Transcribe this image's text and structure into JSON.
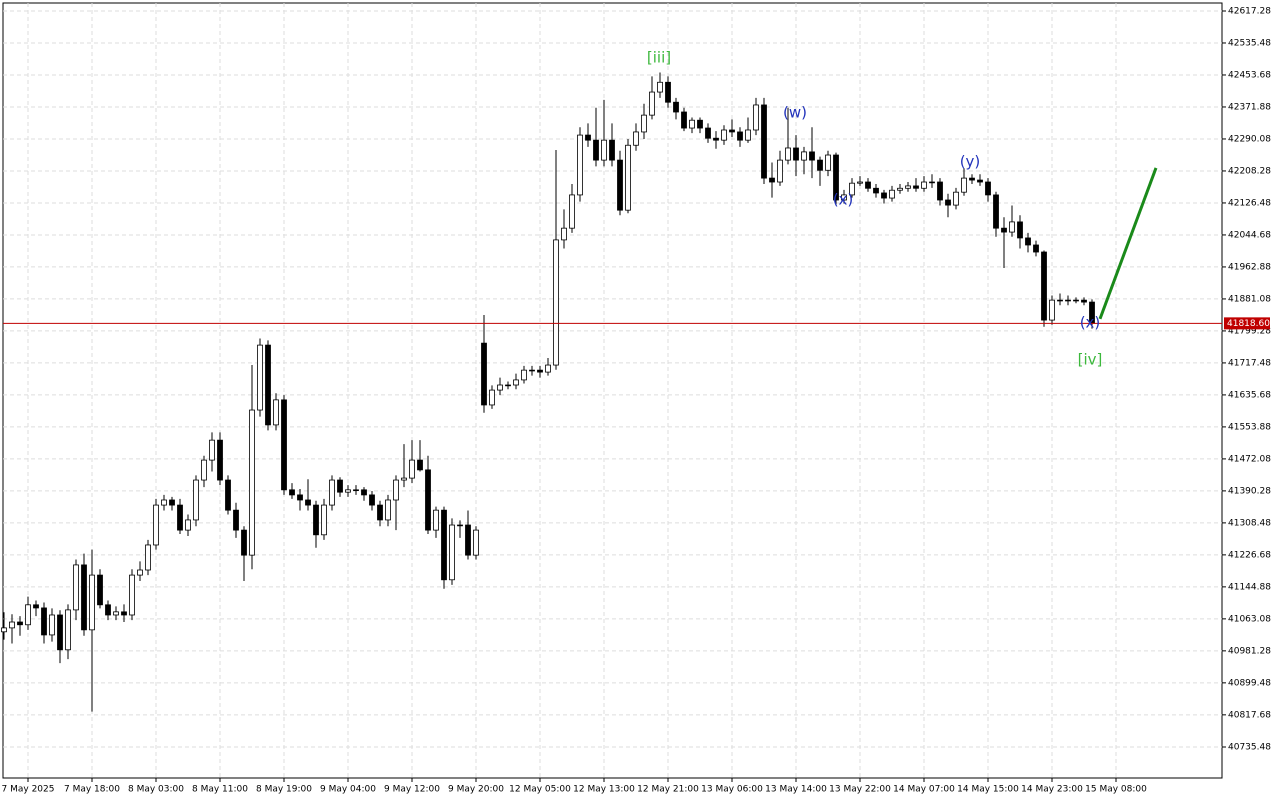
{
  "chart_data": {
    "type": "candlestick",
    "ohlc": [
      [
        41030,
        41080,
        41010,
        41040
      ],
      [
        41040,
        41075,
        41000,
        41055
      ],
      [
        41055,
        41070,
        41020,
        41048
      ],
      [
        41048,
        41120,
        41035,
        41099
      ],
      [
        41099,
        41110,
        41070,
        41091
      ],
      [
        41091,
        41105,
        41000,
        41022
      ],
      [
        41022,
        41090,
        41005,
        41073
      ],
      [
        41073,
        41085,
        40950,
        40984
      ],
      [
        40984,
        41100,
        40960,
        41086
      ],
      [
        41086,
        41215,
        41060,
        41201
      ],
      [
        41201,
        41230,
        41020,
        41035
      ],
      [
        41035,
        41240,
        40826,
        41175
      ],
      [
        41175,
        41190,
        41090,
        41099
      ],
      [
        41099,
        41110,
        41060,
        41073
      ],
      [
        41073,
        41095,
        41060,
        41081
      ],
      [
        41081,
        41100,
        41055,
        41073
      ],
      [
        41073,
        41190,
        41060,
        41175
      ],
      [
        41175,
        41210,
        41160,
        41188
      ],
      [
        41188,
        41265,
        41175,
        41252
      ],
      [
        41252,
        41370,
        41240,
        41354
      ],
      [
        41354,
        41380,
        41340,
        41367
      ],
      [
        41367,
        41375,
        41340,
        41354
      ],
      [
        41354,
        41370,
        41280,
        41290
      ],
      [
        41290,
        41330,
        41275,
        41316
      ],
      [
        41316,
        41430,
        41300,
        41418
      ],
      [
        41418,
        41480,
        41400,
        41469
      ],
      [
        41469,
        41540,
        41440,
        41520
      ],
      [
        41520,
        41540,
        41405,
        41418
      ],
      [
        41418,
        41430,
        41330,
        41341
      ],
      [
        41341,
        41360,
        41270,
        41290
      ],
      [
        41290,
        41300,
        41160,
        41226
      ],
      [
        41226,
        41712,
        41190,
        41597
      ],
      [
        41597,
        41780,
        41580,
        41763
      ],
      [
        41763,
        41775,
        41545,
        41559
      ],
      [
        41559,
        41640,
        41545,
        41623
      ],
      [
        41623,
        41635,
        41380,
        41393
      ],
      [
        41393,
        41410,
        41370,
        41380
      ],
      [
        41380,
        41395,
        41340,
        41367
      ],
      [
        41367,
        41420,
        41340,
        41354
      ],
      [
        41354,
        41365,
        41245,
        41278
      ],
      [
        41278,
        41370,
        41265,
        41354
      ],
      [
        41354,
        41430,
        41340,
        41418
      ],
      [
        41418,
        41425,
        41375,
        41387
      ],
      [
        41387,
        41405,
        41375,
        41393
      ],
      [
        41393,
        41405,
        41380,
        41393
      ],
      [
        41393,
        41400,
        41365,
        41380
      ],
      [
        41380,
        41390,
        41340,
        41354
      ],
      [
        41354,
        41365,
        41300,
        41316
      ],
      [
        41316,
        41380,
        41300,
        41367
      ],
      [
        41367,
        41430,
        41290,
        41418
      ],
      [
        41418,
        41510,
        41400,
        41423
      ],
      [
        41423,
        41520,
        41410,
        41469
      ],
      [
        41469,
        41520,
        41440,
        41444
      ],
      [
        41444,
        41480,
        41280,
        41290
      ],
      [
        41290,
        41350,
        41270,
        41341
      ],
      [
        41341,
        41350,
        41140,
        41163
      ],
      [
        41163,
        41320,
        41150,
        41303
      ],
      [
        41303,
        41315,
        41270,
        41303
      ],
      [
        41303,
        41340,
        41215,
        41226
      ],
      [
        41226,
        41300,
        41215,
        41290
      ],
      [
        41768,
        41840,
        41590,
        41610
      ],
      [
        41610,
        41660,
        41600,
        41648
      ],
      [
        41648,
        41680,
        41635,
        41661
      ],
      [
        41661,
        41670,
        41650,
        41661
      ],
      [
        41661,
        41690,
        41650,
        41674
      ],
      [
        41674,
        41710,
        41665,
        41699
      ],
      [
        41699,
        41710,
        41685,
        41699
      ],
      [
        41699,
        41710,
        41680,
        41694
      ],
      [
        41694,
        41730,
        41685,
        41712
      ],
      [
        41712,
        42262,
        41700,
        42032
      ],
      [
        42032,
        42110,
        42010,
        42062
      ],
      [
        42062,
        42175,
        42050,
        42147
      ],
      [
        42147,
        42320,
        42130,
        42300
      ],
      [
        42300,
        42330,
        42270,
        42287
      ],
      [
        42287,
        42370,
        42220,
        42236
      ],
      [
        42236,
        42390,
        42220,
        42287
      ],
      [
        42287,
        42330,
        42220,
        42236
      ],
      [
        42236,
        42260,
        42095,
        42108
      ],
      [
        42108,
        42290,
        42100,
        42274
      ],
      [
        42274,
        42330,
        42260,
        42308
      ],
      [
        42308,
        42380,
        42290,
        42351
      ],
      [
        42351,
        42450,
        42340,
        42410
      ],
      [
        42410,
        42460,
        42395,
        42435
      ],
      [
        42435,
        42450,
        42370,
        42384
      ],
      [
        42384,
        42395,
        42340,
        42359
      ],
      [
        42359,
        42370,
        42310,
        42318
      ],
      [
        42318,
        42345,
        42305,
        42338
      ],
      [
        42338,
        42345,
        42305,
        42318
      ],
      [
        42318,
        42330,
        42280,
        42292
      ],
      [
        42292,
        42310,
        42265,
        42287
      ],
      [
        42287,
        42325,
        42275,
        42313
      ],
      [
        42313,
        42340,
        42295,
        42308
      ],
      [
        42308,
        42320,
        42270,
        42287
      ],
      [
        42287,
        42345,
        42280,
        42313
      ],
      [
        42313,
        42395,
        42300,
        42377
      ],
      [
        42377,
        42395,
        42175,
        42190
      ],
      [
        42190,
        42230,
        42140,
        42180
      ],
      [
        42180,
        42260,
        42170,
        42236
      ],
      [
        42236,
        42370,
        42225,
        42267
      ],
      [
        42267,
        42300,
        42195,
        42236
      ],
      [
        42236,
        42270,
        42200,
        42257
      ],
      [
        42257,
        42320,
        42190,
        42236
      ],
      [
        42236,
        42245,
        42170,
        42210
      ],
      [
        42210,
        42260,
        42195,
        42249
      ],
      [
        42249,
        42255,
        42120,
        42134
      ],
      [
        42134,
        42160,
        42125,
        42147
      ],
      [
        42147,
        42190,
        42140,
        42177
      ],
      [
        42177,
        42195,
        42170,
        42180
      ],
      [
        42180,
        42190,
        42155,
        42164
      ],
      [
        42164,
        42175,
        42140,
        42152
      ],
      [
        42152,
        42160,
        42125,
        42139
      ],
      [
        42139,
        42170,
        42130,
        42159
      ],
      [
        42159,
        42175,
        42150,
        42164
      ],
      [
        42164,
        42180,
        42155,
        42170
      ],
      [
        42170,
        42190,
        42155,
        42164
      ],
      [
        42164,
        42195,
        42155,
        42180
      ],
      [
        42180,
        42200,
        42165,
        42180
      ],
      [
        42180,
        42190,
        42120,
        42134
      ],
      [
        42134,
        42150,
        42090,
        42121
      ],
      [
        42121,
        42165,
        42110,
        42154
      ],
      [
        42154,
        42215,
        42145,
        42190
      ],
      [
        42190,
        42200,
        42175,
        42185
      ],
      [
        42185,
        42200,
        42170,
        42180
      ],
      [
        42180,
        42190,
        42130,
        42147
      ],
      [
        42147,
        42155,
        42040,
        42062
      ],
      [
        42062,
        42090,
        41960,
        42052
      ],
      [
        42052,
        42120,
        42040,
        42078
      ],
      [
        42078,
        42095,
        42010,
        42037
      ],
      [
        42037,
        42050,
        42000,
        42019
      ],
      [
        42019,
        42030,
        41990,
        42001
      ],
      [
        42001,
        42005,
        41810,
        41827
      ],
      [
        41827,
        41890,
        41815,
        41878
      ],
      [
        41878,
        41895,
        41865,
        41878
      ],
      [
        41878,
        41890,
        41865,
        41878
      ],
      [
        41878,
        41885,
        41870,
        41878
      ],
      [
        41878,
        41885,
        41865,
        41873
      ],
      [
        41873,
        41880,
        41805,
        41818.6
      ]
    ],
    "xlim": [
      -0.125,
      152.25
    ],
    "xticks": [
      {
        "value": 3,
        "label": "7 May 2025"
      },
      {
        "value": 11,
        "label": "7 May 18:00"
      },
      {
        "value": 19,
        "label": "8 May 03:00"
      },
      {
        "value": 27,
        "label": "8 May 11:00"
      },
      {
        "value": 35,
        "label": "8 May 19:00"
      },
      {
        "value": 43,
        "label": "9 May 04:00"
      },
      {
        "value": 51,
        "label": "9 May 12:00"
      },
      {
        "value": 59,
        "label": "9 May 20:00"
      },
      {
        "value": 67,
        "label": "12 May 05:00"
      },
      {
        "value": 75,
        "label": "12 May 13:00"
      },
      {
        "value": 83,
        "label": "12 May 21:00"
      },
      {
        "value": 91,
        "label": "13 May 06:00"
      },
      {
        "value": 99,
        "label": "13 May 14:00"
      },
      {
        "value": 107,
        "label": "13 May 22:00"
      },
      {
        "value": 115,
        "label": "14 May 07:00"
      },
      {
        "value": 123,
        "label": "14 May 15:00"
      },
      {
        "value": 131,
        "label": "14 May 23:00"
      },
      {
        "value": 139,
        "label": "15 May 08:00"
      }
    ],
    "ylim": [
      40656.2,
      42637.7
    ],
    "yticks": [
      40735.48,
      40817.68,
      40899.48,
      40981.28,
      41063.08,
      41144.88,
      41226.68,
      41308.48,
      41390.28,
      41472.08,
      41553.88,
      41635.68,
      41717.48,
      41799.28,
      41881.08,
      41962.88,
      42044.68,
      42126.48,
      42208.28,
      42290.08,
      42371.88,
      42453.68,
      42535.48,
      42617.28
    ],
    "last_price": {
      "value": 41818.6,
      "label": "41818.60"
    },
    "forecast": {
      "x": [
        137,
        144
      ],
      "values": [
        41830,
        42216
      ],
      "color": "#1a8a1a"
    },
    "annotations": [
      {
        "text": "[iii]",
        "color": "#3cb83c"
      },
      {
        "text": "(w)",
        "color": "#2233bb"
      },
      {
        "text": "(x)",
        "color": "#2233bb"
      },
      {
        "text": "(y)",
        "color": "#2233bb"
      },
      {
        "text": "(x)",
        "color": "#2233bb"
      },
      {
        "text": "[iv]",
        "color": "#3cb83c"
      }
    ],
    "grid": true
  }
}
